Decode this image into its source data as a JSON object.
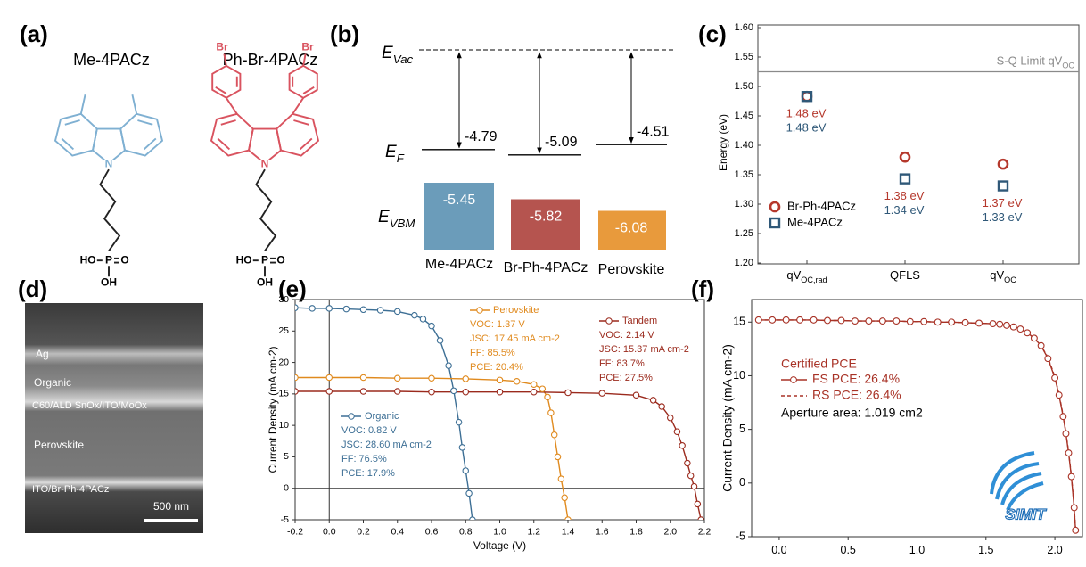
{
  "panel_labels": [
    "(a)",
    "(b)",
    "(c)",
    "(d)",
    "(e)",
    "(f)"
  ],
  "molecules": [
    {
      "name": "Me-4PACz",
      "color": "#7fb0d2"
    },
    {
      "name": "Ph-Br-4PACz",
      "color": "#d9535f",
      "substituent": "Br"
    }
  ],
  "atom_labels": {
    "N": "N",
    "HO": "HO",
    "P": "P",
    "O": "O",
    "OH": "OH"
  },
  "sem": {
    "layers": [
      "Ag",
      "Organic",
      "C60/ALD SnOx/ITO/MoOx",
      "Perovskite",
      "ITO/Br-Ph-4PACz"
    ],
    "scale_bar": "500 nm"
  },
  "chart_data": [
    {
      "type": "energy-levels",
      "level_labels": [
        "E",
        "E",
        "E"
      ],
      "level_subscripts": [
        "Vac",
        "F",
        "VBM"
      ],
      "categories": [
        "Me-4PACz",
        "Br-Ph-4PACz",
        "Perovskite"
      ],
      "fermi_levels": [
        -4.79,
        -5.09,
        -4.51
      ],
      "vbm_levels": [
        -5.45,
        -5.82,
        -6.08
      ],
      "colors": [
        "#6b9cba",
        "#b5544f",
        "#e89a3c"
      ]
    },
    {
      "type": "dot",
      "ylabel": "Energy (eV)",
      "categories": [
        "qV",
        "QFLS",
        "qV"
      ],
      "category_subscripts": [
        "OC,rad",
        null,
        "OC"
      ],
      "ylim": [
        1.2,
        1.6
      ],
      "yticks": [
        {
          "value": 1.2,
          "label": "1.20"
        },
        1.25,
        {
          "value": 1.3,
          "label": "1.30"
        },
        1.35,
        {
          "value": 1.4,
          "label": "1.40"
        },
        1.45,
        {
          "value": 1.5,
          "label": "1.50"
        },
        1.55,
        {
          "value": 1.6,
          "label": "1.60"
        }
      ],
      "reference_line": {
        "value": 1.525,
        "label": "S-Q Limit qV",
        "label_sub": "OC",
        "color": "#8a8a8a"
      },
      "series": [
        {
          "name": "Br-Ph-4PACz",
          "color": "#b5382c",
          "marker": "circle",
          "values": [
            1.483,
            1.38,
            1.368
          ],
          "value_labels": [
            "1.48 eV",
            "1.38 eV",
            "1.37 eV"
          ]
        },
        {
          "name": "Me-4PACz",
          "color": "#2f5878",
          "marker": "square",
          "values": [
            1.483,
            1.343,
            1.331
          ],
          "value_labels": [
            "1.48 eV",
            "1.34 eV",
            "1.33 eV"
          ]
        }
      ]
    },
    {
      "type": "line",
      "xlabel": "Voltage (V)",
      "ylabel": "Current Density (mA cm-2)",
      "xlim": [
        -0.2,
        2.2
      ],
      "xticks": [
        -0.2,
        {
          "value": 0,
          "label": "0.0"
        },
        0.2,
        0.4,
        0.6,
        0.8,
        {
          "value": 1,
          "label": "1.0"
        },
        1.2,
        1.4,
        1.6,
        1.8,
        {
          "value": 2,
          "label": "2.0"
        },
        2.2
      ],
      "ylim": [
        -5,
        30
      ],
      "yticks": [
        -5,
        0,
        5,
        10,
        15,
        20,
        25,
        30
      ],
      "zero_lines": true,
      "series": [
        {
          "name": "Organic",
          "color": "#3d6f95",
          "marker": "circle",
          "x": [
            -0.2,
            -0.1,
            0,
            0.1,
            0.2,
            0.3,
            0.4,
            0.5,
            0.55,
            0.6,
            0.65,
            0.7,
            0.73,
            0.76,
            0.78,
            0.8,
            0.82,
            0.84
          ],
          "values": [
            28.7,
            28.6,
            28.6,
            28.5,
            28.4,
            28.3,
            28.1,
            27.5,
            26.9,
            25.8,
            23.5,
            19.5,
            15.5,
            10.5,
            6.5,
            2.8,
            -0.8,
            -5
          ],
          "notes": [
            "VOC: 0.82 V",
            "JSC: 28.60 mA cm-2",
            "FF: 76.5%",
            "PCE: 17.9%"
          ]
        },
        {
          "name": "Perovskite",
          "color": "#e08a1e",
          "marker": "circle",
          "x": [
            -0.2,
            0,
            0.2,
            0.4,
            0.6,
            0.8,
            1.0,
            1.1,
            1.2,
            1.25,
            1.28,
            1.3,
            1.32,
            1.34,
            1.36,
            1.38,
            1.4
          ],
          "values": [
            17.6,
            17.6,
            17.6,
            17.5,
            17.5,
            17.4,
            17.2,
            17.0,
            16.5,
            15.8,
            14.5,
            12,
            8.5,
            5,
            1.5,
            -1.5,
            -5
          ],
          "notes": [
            "VOC: 1.37 V",
            "JSC: 17.45 mA cm-2",
            "FF: 85.5%",
            "PCE: 20.4%"
          ]
        },
        {
          "name": "Tandem",
          "color": "#9b2a1d",
          "marker": "circle",
          "x": [
            -0.2,
            0,
            0.2,
            0.4,
            0.6,
            0.8,
            1.0,
            1.2,
            1.4,
            1.6,
            1.8,
            1.9,
            1.95,
            2.0,
            2.04,
            2.07,
            2.1,
            2.12,
            2.14,
            2.16,
            2.18
          ],
          "values": [
            15.4,
            15.4,
            15.4,
            15.4,
            15.3,
            15.3,
            15.3,
            15.3,
            15.2,
            15.1,
            14.8,
            14.0,
            13.0,
            11.2,
            9,
            6.8,
            4,
            2,
            0.3,
            -2.5,
            -5
          ],
          "notes": [
            "VOC: 2.14 V",
            "JSC: 15.37 mA cm-2",
            "FF: 83.7%",
            "PCE: 27.5%"
          ]
        }
      ]
    },
    {
      "type": "line",
      "ylabel": "Current Density (mA cm-2)",
      "xlim": [
        -0.2,
        2.2
      ],
      "xticks": [
        {
          "value": 0,
          "label": "0.0"
        },
        0.5,
        {
          "value": 1,
          "label": "1.0"
        },
        1.5,
        {
          "value": 2,
          "label": "2.0"
        }
      ],
      "ylim": [
        -5,
        17.1
      ],
      "yticks": [
        -5,
        0,
        5,
        10,
        15
      ],
      "annotation_title": "Certified PCE",
      "note": "Aperture area: 1.019 cm2",
      "logo_text": "SIMIT",
      "series": [
        {
          "name": "FS PCE: 26.4%",
          "color": "#a83226",
          "marker": "circle",
          "x": [
            -0.15,
            -0.05,
            0.05,
            0.15,
            0.25,
            0.35,
            0.45,
            0.55,
            0.65,
            0.75,
            0.85,
            0.95,
            1.05,
            1.15,
            1.25,
            1.35,
            1.45,
            1.55,
            1.6,
            1.65,
            1.7,
            1.75,
            1.8,
            1.85,
            1.9,
            1.95,
            2.0,
            2.03,
            2.06,
            2.08,
            2.1,
            2.12,
            2.14,
            2.15
          ],
          "values": [
            15.2,
            15.2,
            15.2,
            15.2,
            15.2,
            15.15,
            15.15,
            15.1,
            15.1,
            15.1,
            15.1,
            15.05,
            15.05,
            15.0,
            15.0,
            14.95,
            14.9,
            14.85,
            14.8,
            14.7,
            14.55,
            14.35,
            14.0,
            13.5,
            12.8,
            11.6,
            9.8,
            8.2,
            6.2,
            4.6,
            2.8,
            0.6,
            -2.3,
            -4.4
          ]
        },
        {
          "name": "RS PCE: 26.4%",
          "color": "#a83226",
          "dash": true,
          "x": [
            -0.15,
            -0.05,
            0.05,
            0.15,
            0.25,
            0.35,
            0.45,
            0.55,
            0.65,
            0.75,
            0.85,
            0.95,
            1.05,
            1.15,
            1.25,
            1.35,
            1.45,
            1.55,
            1.6,
            1.65,
            1.7,
            1.75,
            1.8,
            1.85,
            1.9,
            1.95,
            2.0,
            2.03,
            2.06,
            2.08,
            2.1,
            2.12,
            2.14,
            2.15
          ],
          "values": [
            15.2,
            15.2,
            15.2,
            15.2,
            15.2,
            15.15,
            15.15,
            15.1,
            15.1,
            15.1,
            15.1,
            15.05,
            15.05,
            15.0,
            15.0,
            14.95,
            14.9,
            14.85,
            14.8,
            14.7,
            14.55,
            14.35,
            14.0,
            13.5,
            12.8,
            11.7,
            9.9,
            8.3,
            6.3,
            4.7,
            2.9,
            0.7,
            -2.2,
            -4.3
          ]
        }
      ]
    }
  ]
}
